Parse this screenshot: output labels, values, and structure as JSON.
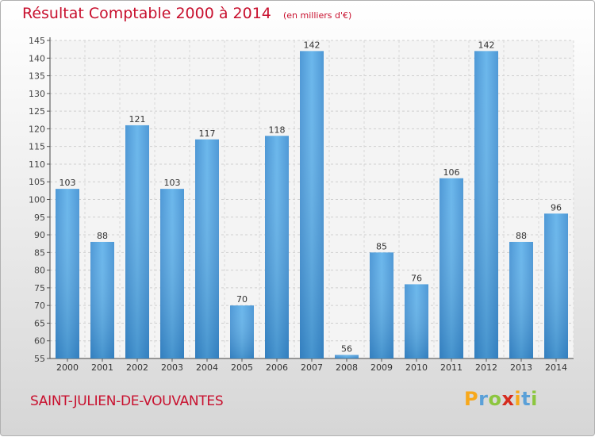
{
  "chart_data": {
    "type": "bar",
    "title": "Résultat Comptable 2000 à 2014",
    "subtitle": "(en milliers d'€)",
    "categories": [
      "2000",
      "2001",
      "2002",
      "2003",
      "2004",
      "2005",
      "2006",
      "2007",
      "2008",
      "2009",
      "2010",
      "2011",
      "2012",
      "2013",
      "2014"
    ],
    "values": [
      103,
      88,
      121,
      103,
      117,
      70,
      118,
      142,
      56,
      85,
      76,
      106,
      142,
      88,
      96
    ],
    "ylim": [
      55,
      145
    ],
    "yticks": [
      55,
      60,
      65,
      70,
      75,
      80,
      85,
      90,
      95,
      100,
      105,
      110,
      115,
      120,
      125,
      130,
      135,
      140,
      145
    ],
    "grid": true,
    "legend": "none",
    "bar_color": "#4a9fe0"
  },
  "footer": {
    "commune": "SAINT-JULIEN-DE-VOUVANTES",
    "logo_letters": [
      "P",
      "r",
      "o",
      "x",
      "i",
      "t",
      "i"
    ],
    "logo_colors": [
      "#f7a81b",
      "#5aa0d8",
      "#8cc63f",
      "#d52b1e",
      "#f7a81b",
      "#5aa0d8",
      "#8cc63f"
    ]
  }
}
